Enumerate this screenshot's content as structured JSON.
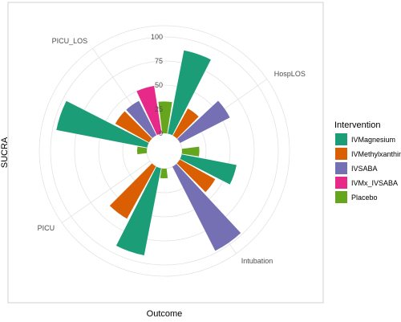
{
  "chart_data": {
    "type": "bar",
    "coordinate_system": "polar",
    "xlabel": "Outcome",
    "ylabel": "SUCRA",
    "ylim": [
      0,
      100
    ],
    "rticks": [
      "0",
      "25",
      "50",
      "75",
      "100"
    ],
    "categories": [
      "HospLOS",
      "Intubation",
      "PICU",
      "PICU_LOS"
    ],
    "legend": {
      "title": "Intervention",
      "position": "right"
    },
    "grid": true,
    "series": [
      {
        "name": "IVMagnesium",
        "color": "#1B9E77",
        "values": [
          88,
          58,
          92,
          96
        ]
      },
      {
        "name": "IVMethylxanthine",
        "color": "#D95F02",
        "values": [
          32,
          42,
          62,
          40
        ]
      },
      {
        "name": "IVSABA",
        "color": "#7570B3",
        "values": [
          58,
          98,
          0,
          40
        ]
      },
      {
        "name": "IVMx_IVSABA",
        "color": "#E7298A",
        "values": [
          0,
          0,
          0,
          50
        ]
      },
      {
        "name": "Placebo",
        "color": "#66A61E",
        "values": [
          18,
          10,
          10,
          33
        ]
      }
    ]
  }
}
